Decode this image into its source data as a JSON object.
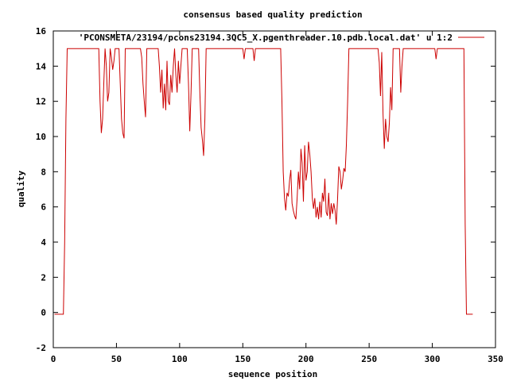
{
  "chart_data": {
    "type": "line",
    "title": "consensus based quality prediction",
    "xlabel": "sequence position",
    "ylabel": "quality",
    "xlim": [
      0,
      350
    ],
    "ylim": [
      -2,
      16
    ],
    "xticks": [
      0,
      50,
      100,
      150,
      200,
      250,
      300,
      350
    ],
    "yticks": [
      -2,
      0,
      2,
      4,
      6,
      8,
      10,
      12,
      14,
      16
    ],
    "grid": false,
    "legend_position": "top-right",
    "colors": {
      "series": "#cc0000",
      "axes": "#000000"
    },
    "series": [
      {
        "name": "'PCONSMETA/23194/pcons23194.3QC5_X.pgenthreader.10.pdb.local.dat' u 1:2",
        "points": [
          [
            1,
            -0.1
          ],
          [
            8,
            -0.1
          ],
          [
            9,
            4
          ],
          [
            10,
            11
          ],
          [
            11,
            15
          ],
          [
            36,
            15
          ],
          [
            37,
            12
          ],
          [
            38,
            10.2
          ],
          [
            39,
            11
          ],
          [
            40,
            13
          ],
          [
            41,
            15
          ],
          [
            42,
            14
          ],
          [
            43,
            12
          ],
          [
            44,
            12.5
          ],
          [
            45,
            15
          ],
          [
            46,
            14.5
          ],
          [
            47,
            13.8
          ],
          [
            48,
            14.3
          ],
          [
            49,
            15
          ],
          [
            52,
            15
          ],
          [
            53,
            13
          ],
          [
            54,
            11
          ],
          [
            55,
            10.2
          ],
          [
            56,
            9.9
          ],
          [
            57,
            15
          ],
          [
            69,
            15
          ],
          [
            70,
            14.5
          ],
          [
            71,
            13
          ],
          [
            72,
            12
          ],
          [
            73,
            11.1
          ],
          [
            74,
            15
          ],
          [
            83,
            15
          ],
          [
            84,
            14
          ],
          [
            85,
            12.5
          ],
          [
            86,
            13.8
          ],
          [
            87,
            11.6
          ],
          [
            88,
            13
          ],
          [
            89,
            11.5
          ],
          [
            90,
            14.3
          ],
          [
            91,
            12
          ],
          [
            92,
            11.8
          ],
          [
            93,
            13.5
          ],
          [
            94,
            12.5
          ],
          [
            95,
            14
          ],
          [
            96,
            15
          ],
          [
            97,
            13.5
          ],
          [
            98,
            12.5
          ],
          [
            99,
            14.3
          ],
          [
            100,
            13
          ],
          [
            101,
            14
          ],
          [
            102,
            15
          ],
          [
            106,
            15
          ],
          [
            107,
            13
          ],
          [
            108,
            10.3
          ],
          [
            109,
            12.5
          ],
          [
            110,
            15
          ],
          [
            115,
            15
          ],
          [
            116,
            12.5
          ],
          [
            117,
            10.5
          ],
          [
            118,
            9.8
          ],
          [
            119,
            8.9
          ],
          [
            120,
            11
          ],
          [
            121,
            15
          ],
          [
            150,
            15
          ],
          [
            151,
            14.4
          ],
          [
            152,
            15
          ],
          [
            158,
            15
          ],
          [
            159,
            14.3
          ],
          [
            160,
            15
          ],
          [
            180,
            15
          ],
          [
            181,
            12
          ],
          [
            182,
            8
          ],
          [
            183,
            6.5
          ],
          [
            184,
            5.8
          ],
          [
            185,
            6.8
          ],
          [
            186,
            6.6
          ],
          [
            187,
            7.5
          ],
          [
            188,
            8.1
          ],
          [
            189,
            6.2
          ],
          [
            190,
            5.8
          ],
          [
            191,
            5.5
          ],
          [
            192,
            5.3
          ],
          [
            193,
            6.5
          ],
          [
            194,
            8
          ],
          [
            195,
            7
          ],
          [
            196,
            9.3
          ],
          [
            197,
            8.5
          ],
          [
            198,
            6.3
          ],
          [
            199,
            9.5
          ],
          [
            200,
            7.5
          ],
          [
            201,
            8
          ],
          [
            202,
            9.7
          ],
          [
            203,
            9
          ],
          [
            204,
            8
          ],
          [
            205,
            6.5
          ],
          [
            206,
            5.9
          ],
          [
            207,
            6.5
          ],
          [
            208,
            5.4
          ],
          [
            209,
            6
          ],
          [
            210,
            5.3
          ],
          [
            211,
            6.3
          ],
          [
            212,
            5.4
          ],
          [
            213,
            6.8
          ],
          [
            214,
            6.3
          ],
          [
            215,
            7.6
          ],
          [
            216,
            5.7
          ],
          [
            217,
            5.5
          ],
          [
            218,
            6.8
          ],
          [
            219,
            5.3
          ],
          [
            220,
            6.2
          ],
          [
            221,
            5.6
          ],
          [
            222,
            6.2
          ],
          [
            223,
            5.8
          ],
          [
            224,
            5
          ],
          [
            225,
            6.4
          ],
          [
            226,
            8.3
          ],
          [
            227,
            8
          ],
          [
            228,
            7
          ],
          [
            229,
            7.5
          ],
          [
            230,
            8.2
          ],
          [
            231,
            8
          ],
          [
            232,
            9.5
          ],
          [
            233,
            12
          ],
          [
            234,
            15
          ],
          [
            257,
            15
          ],
          [
            258,
            14.2
          ],
          [
            259,
            12.3
          ],
          [
            260,
            14.8
          ],
          [
            261,
            11.3
          ],
          [
            262,
            9.3
          ],
          [
            263,
            11
          ],
          [
            264,
            10
          ],
          [
            265,
            9.7
          ],
          [
            266,
            10.8
          ],
          [
            267,
            12.8
          ],
          [
            268,
            11.5
          ],
          [
            269,
            15
          ],
          [
            274,
            15
          ],
          [
            275,
            12.5
          ],
          [
            276,
            14
          ],
          [
            277,
            15
          ],
          [
            302,
            15
          ],
          [
            303,
            14.4
          ],
          [
            304,
            15
          ],
          [
            325,
            15
          ],
          [
            326,
            5
          ],
          [
            327,
            -0.1
          ],
          [
            332,
            -0.1
          ]
        ]
      }
    ]
  }
}
